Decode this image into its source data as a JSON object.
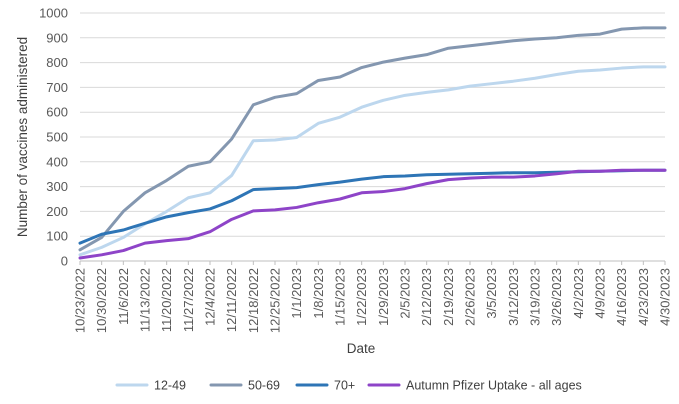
{
  "chart_data": {
    "type": "line",
    "xlabel": "Date",
    "ylabel": "Number of vaccines administered",
    "ylim": [
      0,
      1000
    ],
    "yticks": [
      "0",
      "100",
      "200",
      "300",
      "400",
      "500",
      "600",
      "700",
      "800",
      "900",
      "1000"
    ],
    "grid": "horizontal",
    "legend_position": "bottom",
    "categories": [
      "10/23/2022",
      "10/30/2022",
      "11/6/2022",
      "11/13/2022",
      "11/20/2022",
      "11/27/2022",
      "12/4/2022",
      "12/11/2022",
      "12/18/2022",
      "12/25/2022",
      "1/1/2023",
      "1/8/2023",
      "1/15/2023",
      "1/22/2023",
      "1/29/2023",
      "2/5/2023",
      "2/12/2023",
      "2/19/2023",
      "2/26/2023",
      "3/5/2023",
      "3/12/2023",
      "3/19/2023",
      "3/26/2023",
      "4/2/2023",
      "4/9/2023",
      "4/16/2023",
      "4/23/2023",
      "4/30/2023"
    ],
    "series": [
      {
        "name": "12-49",
        "color": "#bdd7ee",
        "values": [
          25,
          55,
          95,
          150,
          200,
          255,
          275,
          345,
          485,
          488,
          498,
          555,
          580,
          620,
          648,
          668,
          680,
          690,
          705,
          715,
          725,
          737,
          752,
          765,
          770,
          778,
          783,
          783
        ]
      },
      {
        "name": "50-69",
        "color": "#8497b0",
        "values": [
          45,
          95,
          200,
          275,
          325,
          382,
          400,
          492,
          630,
          660,
          675,
          728,
          742,
          780,
          802,
          818,
          832,
          858,
          868,
          878,
          888,
          895,
          900,
          910,
          915,
          935,
          940,
          940
        ]
      },
      {
        "name": "70+",
        "color": "#2e75b6",
        "values": [
          72,
          108,
          125,
          152,
          178,
          195,
          210,
          243,
          288,
          292,
          296,
          308,
          318,
          330,
          340,
          343,
          348,
          350,
          352,
          354,
          356,
          356,
          358,
          360,
          362,
          364,
          366,
          366
        ]
      },
      {
        "name": "Autumn Pfizer Uptake - all ages",
        "color": "#8e44c8",
        "values": [
          12,
          25,
          42,
          72,
          82,
          90,
          118,
          168,
          202,
          206,
          216,
          235,
          250,
          275,
          280,
          292,
          312,
          328,
          334,
          338,
          338,
          343,
          352,
          362,
          362,
          366,
          366,
          366
        ]
      }
    ]
  }
}
